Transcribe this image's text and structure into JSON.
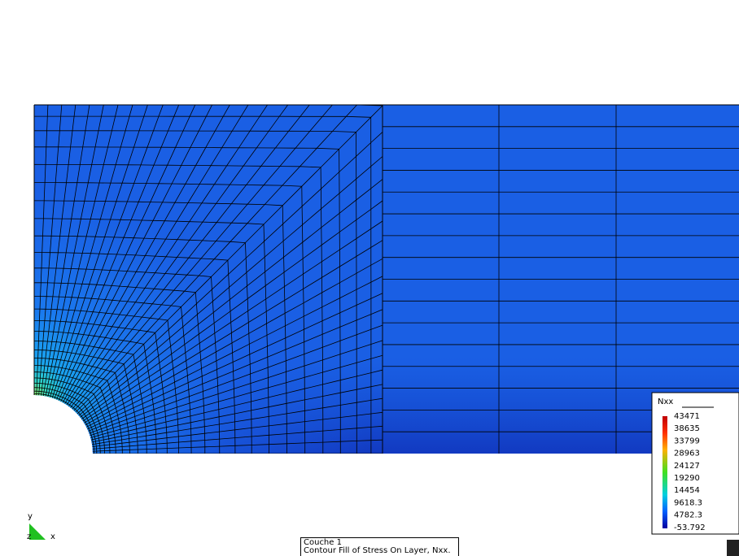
{
  "legend": {
    "title": "Nxx",
    "values": [
      "43471",
      "38635",
      "33799",
      "28963",
      "24127",
      "19290",
      "14454",
      "9618.3",
      "4782.3",
      "-53.792"
    ]
  },
  "axes": {
    "y": "y",
    "z": "z",
    "x": "x"
  },
  "caption": {
    "line1": "Couche  1",
    "line2": "Contour Fill of Stress On Layer, Nxx."
  }
}
